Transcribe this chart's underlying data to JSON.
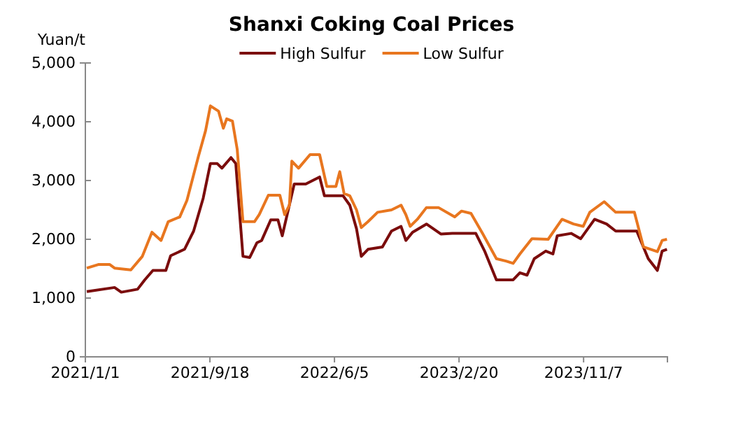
{
  "chart_data": {
    "type": "line",
    "title": "Shanxi Coking Coal Prices",
    "ylabel": "Yuan/t",
    "xlim": [
      "2021-01-01",
      "2024-04-30"
    ],
    "xticks": [
      {
        "value": "2021-01-01",
        "label": "2021/1/1"
      },
      {
        "value": "2021-09-18",
        "label": "2021/9/18"
      },
      {
        "value": "2022-06-05",
        "label": "2022/6/5"
      },
      {
        "value": "2023-02-20",
        "label": "2023/2/20"
      },
      {
        "value": "2023-11-07",
        "label": "2023/11/7"
      }
    ],
    "ylim": [
      0,
      5000
    ],
    "yticks": [
      0,
      {
        "value": 1000,
        "label": "1,000"
      },
      {
        "value": 2000,
        "label": "2,000"
      },
      {
        "value": 3000,
        "label": "3,000"
      },
      {
        "value": 4000,
        "label": "4,000"
      },
      {
        "value": 5000,
        "label": "5,000"
      }
    ],
    "grid": false,
    "legend": "top",
    "line_style": "solid",
    "series": [
      {
        "name": "High Sulfur",
        "color": "#7b0c0c",
        "x": [
          "2021-01-04",
          "2021-03-03",
          "2021-03-17",
          "2021-04-20",
          "2021-05-05",
          "2021-05-22",
          "2021-06-18",
          "2021-06-28",
          "2021-07-27",
          "2021-08-15",
          "2021-09-04",
          "2021-09-19",
          "2021-10-03",
          "2021-10-13",
          "2021-11-01",
          "2021-11-11",
          "2021-11-26",
          "2021-12-10",
          "2021-12-25",
          "2022-01-04",
          "2022-01-23",
          "2022-02-07",
          "2022-02-16",
          "2022-03-13",
          "2022-04-06",
          "2022-05-05",
          "2022-05-15",
          "2022-06-23",
          "2022-07-07",
          "2022-07-21",
          "2022-07-31",
          "2022-08-14",
          "2022-09-13",
          "2022-10-02",
          "2022-10-22",
          "2022-11-01",
          "2022-11-15",
          "2022-12-14",
          "2023-01-13",
          "2023-02-06",
          "2023-03-27",
          "2023-04-15",
          "2023-05-09",
          "2023-06-13",
          "2023-06-27",
          "2023-07-12",
          "2023-07-27",
          "2023-08-20",
          "2023-09-04",
          "2023-09-13",
          "2023-10-12",
          "2023-11-01",
          "2023-11-30",
          "2023-12-25",
          "2024-01-13",
          "2024-02-26",
          "2024-03-21",
          "2024-04-09",
          "2024-04-19",
          "2024-04-29"
        ],
        "values": [
          1110,
          1180,
          1100,
          1150,
          1310,
          1470,
          1470,
          1720,
          1830,
          2140,
          2700,
          3290,
          3290,
          3210,
          3390,
          3290,
          1710,
          1690,
          1940,
          1980,
          2330,
          2330,
          2060,
          2940,
          2940,
          3060,
          2740,
          2740,
          2580,
          2180,
          1710,
          1830,
          1870,
          2140,
          2220,
          1980,
          2120,
          2260,
          2090,
          2100,
          2100,
          1790,
          1310,
          1310,
          1430,
          1390,
          1670,
          1800,
          1750,
          2060,
          2100,
          2010,
          2340,
          2260,
          2140,
          2140,
          1670,
          1470,
          1800,
          1830
        ]
      },
      {
        "name": "Low Sulfur",
        "color": "#e8761f",
        "x": [
          "2021-01-04",
          "2021-01-28",
          "2021-02-21",
          "2021-03-03",
          "2021-04-06",
          "2021-04-30",
          "2021-05-20",
          "2021-06-08",
          "2021-06-23",
          "2021-07-17",
          "2021-08-01",
          "2021-08-25",
          "2021-09-09",
          "2021-09-19",
          "2021-10-06",
          "2021-10-16",
          "2021-10-23",
          "2021-11-04",
          "2021-11-14",
          "2021-11-26",
          "2021-12-20",
          "2021-12-30",
          "2022-01-18",
          "2022-02-11",
          "2022-02-21",
          "2022-03-03",
          "2022-03-08",
          "2022-03-22",
          "2022-04-15",
          "2022-05-05",
          "2022-05-20",
          "2022-06-08",
          "2022-06-16",
          "2022-06-25",
          "2022-07-07",
          "2022-07-21",
          "2022-07-31",
          "2022-08-14",
          "2022-09-03",
          "2022-10-02",
          "2022-10-22",
          "2022-11-01",
          "2022-11-10",
          "2022-11-25",
          "2022-12-14",
          "2023-01-08",
          "2023-02-11",
          "2023-02-25",
          "2023-03-17",
          "2023-04-10",
          "2023-05-09",
          "2023-05-29",
          "2023-06-13",
          "2023-06-27",
          "2023-07-22",
          "2023-08-25",
          "2023-09-23",
          "2023-10-17",
          "2023-11-06",
          "2023-11-20",
          "2023-12-20",
          "2024-01-13",
          "2024-02-21",
          "2024-03-11",
          "2024-04-09",
          "2024-04-19",
          "2024-04-29"
        ],
        "values": [
          1510,
          1570,
          1570,
          1510,
          1480,
          1710,
          2120,
          1980,
          2300,
          2380,
          2660,
          3410,
          3850,
          4270,
          4180,
          3890,
          4050,
          4010,
          3530,
          2300,
          2300,
          2420,
          2750,
          2750,
          2420,
          2580,
          3330,
          3210,
          3440,
          3440,
          2900,
          2900,
          3150,
          2780,
          2740,
          2500,
          2200,
          2300,
          2460,
          2500,
          2580,
          2420,
          2220,
          2340,
          2540,
          2540,
          2380,
          2480,
          2440,
          2100,
          1670,
          1630,
          1590,
          1750,
          2010,
          2000,
          2340,
          2260,
          2220,
          2460,
          2640,
          2460,
          2460,
          1870,
          1790,
          1980,
          2000
        ]
      }
    ]
  }
}
